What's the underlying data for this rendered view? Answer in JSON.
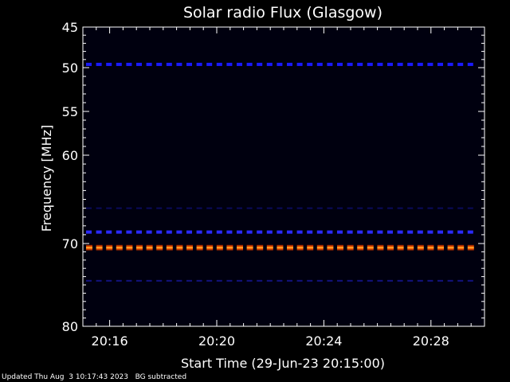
{
  "chart_data": {
    "type": "heatmap",
    "title": "Solar radio Flux (Glasgow)",
    "xlabel": "Start Time (29-Jun-23 20:15:00)",
    "ylabel": "Frequency [MHz]",
    "x_range": [
      "20:15:00",
      "20:30:00"
    ],
    "x_ticks": [
      "20:16",
      "20:20",
      "20:24",
      "20:28"
    ],
    "y_range": [
      45,
      80
    ],
    "y_ticks": [
      45,
      50,
      55,
      60,
      70,
      80
    ],
    "y_scale": "nonlinear",
    "background": "#00000f",
    "bands": [
      {
        "freq_mhz": 49.6,
        "color": "#1a1aff",
        "intensity": "moderate"
      },
      {
        "freq_mhz": 66.0,
        "color": "#10107a",
        "intensity": "faint"
      },
      {
        "freq_mhz": 68.7,
        "color": "#2a2aff",
        "intensity": "moderate"
      },
      {
        "freq_mhz": 70.5,
        "color": "#ff6a00",
        "intensity": "strong"
      },
      {
        "freq_mhz": 74.5,
        "color": "#1a1ab0",
        "intensity": "faint"
      }
    ]
  },
  "footer": {
    "updated": "Updated Thu Aug  3 10:17:43 2023",
    "note": "BG subtracted"
  }
}
